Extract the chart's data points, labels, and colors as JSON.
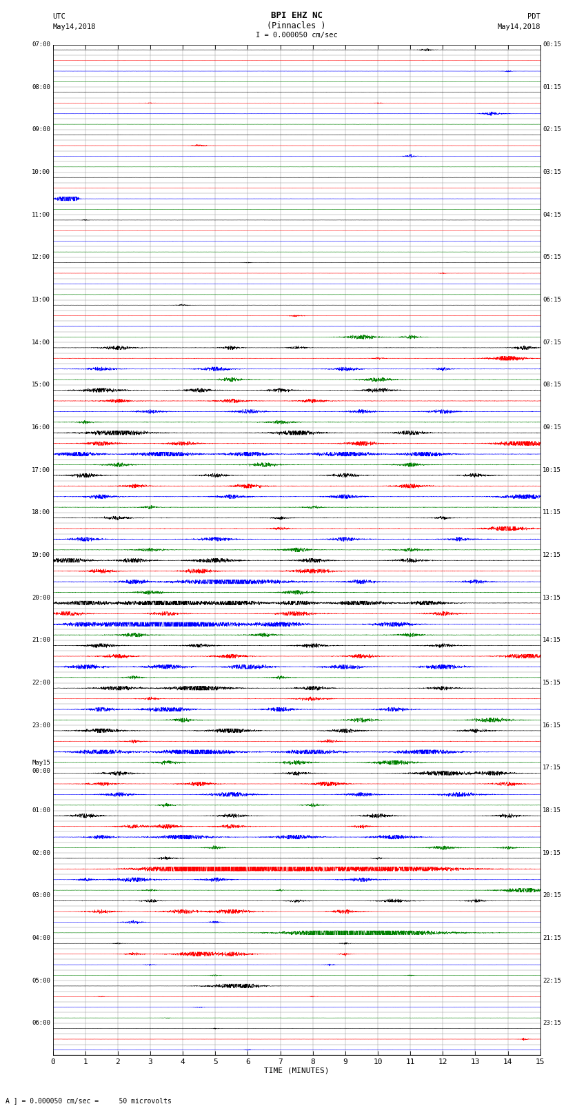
{
  "title_line1": "BPI EHZ NC",
  "title_line2": "(Pinnacles )",
  "scale_label": "I = 0.000050 cm/sec",
  "left_label_top": "UTC",
  "left_label_date": "May14,2018",
  "right_label_top": "PDT",
  "right_label_date": "May14,2018",
  "bottom_label": "TIME (MINUTES)",
  "bottom_note": "A ] = 0.000050 cm/sec =     50 microvolts",
  "utc_row_labels": [
    "07:00",
    "",
    "",
    "",
    "08:00",
    "",
    "",
    "",
    "09:00",
    "",
    "",
    "",
    "10:00",
    "",
    "",
    "",
    "11:00",
    "",
    "",
    "",
    "12:00",
    "",
    "",
    "",
    "13:00",
    "",
    "",
    "",
    "14:00",
    "",
    "",
    "",
    "15:00",
    "",
    "",
    "",
    "16:00",
    "",
    "",
    "",
    "17:00",
    "",
    "",
    "",
    "18:00",
    "",
    "",
    "",
    "19:00",
    "",
    "",
    "",
    "20:00",
    "",
    "",
    "",
    "21:00",
    "",
    "",
    "",
    "22:00",
    "",
    "",
    "",
    "23:00",
    "",
    "",
    "",
    "May15\n00:00",
    "",
    "",
    "",
    "01:00",
    "",
    "",
    "",
    "02:00",
    "",
    "",
    "",
    "03:00",
    "",
    "",
    "",
    "04:00",
    "",
    "",
    "",
    "05:00",
    "",
    "",
    "",
    "06:00",
    "",
    ""
  ],
  "pdt_row_labels": [
    "00:15",
    "",
    "",
    "",
    "01:15",
    "",
    "",
    "",
    "02:15",
    "",
    "",
    "",
    "03:15",
    "",
    "",
    "",
    "04:15",
    "",
    "",
    "",
    "05:15",
    "",
    "",
    "",
    "06:15",
    "",
    "",
    "",
    "07:15",
    "",
    "",
    "",
    "08:15",
    "",
    "",
    "",
    "09:15",
    "",
    "",
    "",
    "10:15",
    "",
    "",
    "",
    "11:15",
    "",
    "",
    "",
    "12:15",
    "",
    "",
    "",
    "13:15",
    "",
    "",
    "",
    "14:15",
    "",
    "",
    "",
    "15:15",
    "",
    "",
    "",
    "16:15",
    "",
    "",
    "",
    "17:15",
    "",
    "",
    "",
    "18:15",
    "",
    "",
    "",
    "19:15",
    "",
    "",
    "",
    "20:15",
    "",
    "",
    "",
    "21:15",
    "",
    "",
    "",
    "22:15",
    "",
    "",
    "",
    "23:15",
    "",
    ""
  ],
  "n_rows": 95,
  "x_ticks": [
    0,
    1,
    2,
    3,
    4,
    5,
    6,
    7,
    8,
    9,
    10,
    11,
    12,
    13,
    14,
    15
  ],
  "background_color": "#ffffff",
  "grid_color": "#999999",
  "trace_colors_cycle": [
    "black",
    "red",
    "blue",
    "green"
  ],
  "fig_width": 8.5,
  "fig_height": 16.13,
  "dpi": 100
}
